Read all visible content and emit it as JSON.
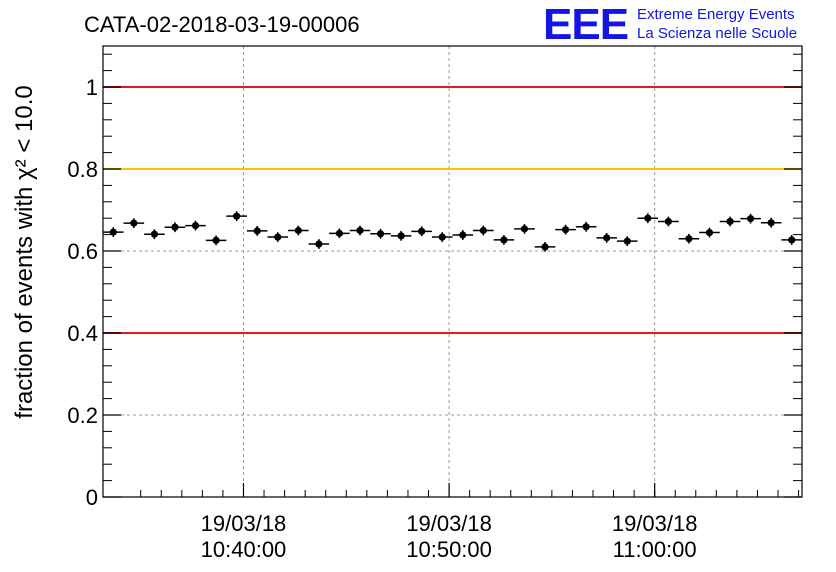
{
  "title": "CATA-02-2018-03-19-00006",
  "logo": {
    "mark": "EEE",
    "line1": "Extreme Energy Events",
    "line2": "La Scienza nelle Scuole",
    "color": "#1414e6"
  },
  "chart_data": {
    "type": "scatter",
    "title": "CATA-02-2018-03-19-00006",
    "ylabel": "fraction of events with χ² < 10.0",
    "ylim": [
      0,
      1.1
    ],
    "yticks": [
      {
        "value": 0,
        "label": "0"
      },
      {
        "value": 0.2,
        "label": "0.2"
      },
      {
        "value": 0.4,
        "label": "0.4"
      },
      {
        "value": 0.6,
        "label": "0.6"
      },
      {
        "value": 0.8,
        "label": "0.8"
      },
      {
        "value": 1,
        "label": "1"
      }
    ],
    "xlim": [
      "2018-03-19 10:33:10",
      "2018-03-19 11:07:10"
    ],
    "xticks": [
      {
        "value": "2018-03-19 10:40:00",
        "date": "19/03/18",
        "time": "10:40:00"
      },
      {
        "value": "2018-03-19 10:50:00",
        "date": "19/03/18",
        "time": "10:50:00"
      },
      {
        "value": "2018-03-19 11:00:00",
        "date": "19/03/18",
        "time": "11:00:00"
      }
    ],
    "grid": true,
    "reference_lines": [
      {
        "y": 1.0,
        "color": "#e31a1c"
      },
      {
        "y": 0.8,
        "color": "#ffc000"
      },
      {
        "y": 0.4,
        "color": "#e31a1c"
      }
    ],
    "series": [
      {
        "x": [
          "10:33:40",
          "10:34:40",
          "10:35:40",
          "10:36:40",
          "10:37:40",
          "10:38:40",
          "10:39:40",
          "10:40:40",
          "10:41:40",
          "10:42:40",
          "10:43:40",
          "10:44:40",
          "10:45:40",
          "10:46:40",
          "10:47:40",
          "10:48:40",
          "10:49:40",
          "10:50:40",
          "10:51:40",
          "10:52:40",
          "10:53:40",
          "10:54:40",
          "10:55:40",
          "10:56:40",
          "10:57:40",
          "10:58:40",
          "10:59:40",
          "11:00:40",
          "11:01:40",
          "11:02:40",
          "11:03:40",
          "11:04:40",
          "11:05:40",
          "11:06:40"
        ],
        "y": [
          0.646,
          0.668,
          0.641,
          0.658,
          0.662,
          0.626,
          0.685,
          0.649,
          0.634,
          0.65,
          0.617,
          0.643,
          0.65,
          0.642,
          0.637,
          0.648,
          0.634,
          0.639,
          0.65,
          0.627,
          0.654,
          0.61,
          0.652,
          0.659,
          0.632,
          0.624,
          0.68,
          0.672,
          0.63,
          0.645,
          0.672,
          0.679,
          0.669,
          0.627
        ],
        "yerr": 0.012,
        "xerr_seconds": 30,
        "color": "#000000"
      }
    ]
  }
}
